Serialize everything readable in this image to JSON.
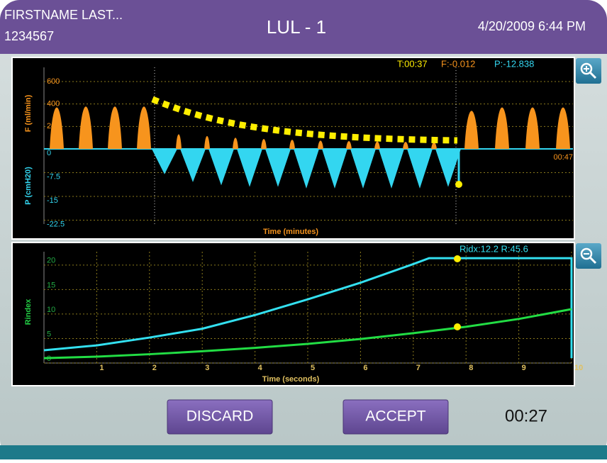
{
  "header": {
    "patient_name": "FIRSTNAME LAST...",
    "patient_id": "1234567",
    "title": "LUL - 1",
    "datetime": "4/20/2009 6:44 PM"
  },
  "flow_chart": {
    "readout": {
      "time": "T:00:37",
      "flow": "F:-0.012",
      "pressure": "P:-12.838"
    },
    "f_axis_label": "F (ml/min)",
    "p_axis_label": "P (cmH20)",
    "x_axis_label": "Time (minutes)",
    "end_time": "00:47",
    "f_ticks": [
      200,
      400,
      600
    ],
    "p_ticks": [
      0,
      -7.5,
      -15,
      -22.5
    ],
    "flow_peaks_before": [
      430,
      440,
      440,
      440
    ],
    "flow_peaks_during": [
      110,
      90,
      70,
      55,
      45,
      35,
      30,
      25,
      20,
      15
    ],
    "pressure_troughs": [
      -8,
      -10.5,
      -11.5,
      -12,
      -12,
      -12.5,
      -12.5,
      -12.5,
      -12.5,
      -12.5,
      -12
    ],
    "flow_peaks_after": [
      390,
      430,
      430,
      430
    ]
  },
  "rindex_chart": {
    "readout": "Ridx:12.2 R:45.6",
    "y_axis_label": "Rindex",
    "x_axis_label": "Time (seconds)",
    "xlim": [
      0,
      10
    ],
    "ylim": [
      0,
      22
    ],
    "xticks": [
      1,
      2,
      3,
      4,
      5,
      6,
      7,
      8,
      9,
      10
    ],
    "yticks": [
      0,
      5,
      10,
      15,
      20
    ],
    "series": [
      {
        "color": "#33e0f0",
        "x": [
          0,
          1,
          2,
          3,
          4,
          5,
          6,
          7,
          7.3,
          8,
          9,
          10,
          10
        ],
        "values": [
          2.6,
          3.6,
          5.2,
          7,
          9.8,
          13,
          16.4,
          20.2,
          21.4,
          21.4,
          21.4,
          21.4,
          1
        ]
      },
      {
        "color": "#22dd44",
        "x": [
          0,
          1,
          2,
          3,
          4,
          5,
          6,
          7,
          8,
          9,
          10
        ],
        "values": [
          1,
          1.3,
          1.8,
          2.4,
          3.1,
          3.9,
          4.9,
          6.1,
          7.4,
          9,
          11
        ]
      }
    ]
  },
  "buttons": {
    "discard": "DISCARD",
    "accept": "ACCEPT"
  },
  "timer": "00:27"
}
